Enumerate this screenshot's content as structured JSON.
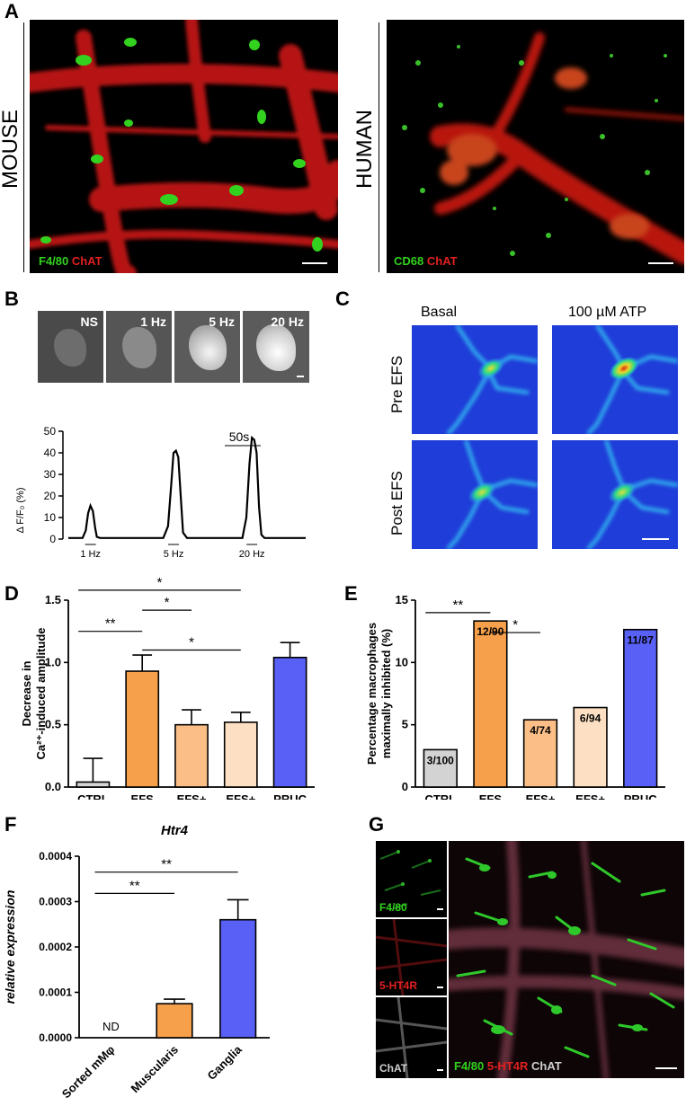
{
  "panels": {
    "A": {
      "letter": "A",
      "mouse": {
        "side_label": "MOUSE",
        "label_green": "F4/80",
        "label_red": "ChAT"
      },
      "human": {
        "side_label": "HUMAN",
        "label_green": "CD68",
        "label_red": "ChAT"
      }
    },
    "B": {
      "letter": "B",
      "frames": [
        "NS",
        "1 Hz",
        "5 Hz",
        "20 Hz"
      ],
      "trace_scalebar": "50s",
      "stim_labels": [
        "1 Hz",
        "5 Hz",
        "20 Hz"
      ]
    },
    "C": {
      "letter": "C",
      "col_labels": [
        "Basal",
        "100 µM ATP"
      ],
      "row_labels": [
        "Pre EFS",
        "Post EFS"
      ]
    },
    "D": {
      "letter": "D"
    },
    "E": {
      "letter": "E"
    },
    "F": {
      "letter": "F"
    },
    "G": {
      "letter": "G",
      "small_labels": [
        "F4/80",
        "5-HT4R",
        "ChAT"
      ],
      "merge_labels": [
        "F4/80",
        "5-HT4R",
        "ChAT"
      ]
    }
  },
  "colors": {
    "orange": "#f7a04b",
    "light_orange": "#fbbe87",
    "peach": "#fde0c3",
    "blue": "#5860f5",
    "grey": "#d3d3d3"
  },
  "chart_data": [
    {
      "id": "B-trace",
      "type": "line",
      "ylabel": "Δ F/F₀ (%)",
      "yticks": [
        0,
        10,
        20,
        30,
        40,
        50
      ],
      "ylim": [
        0,
        50
      ],
      "xlim": [
        0,
        300
      ],
      "series": [
        {
          "x": [
            0,
            18,
            22,
            25,
            28,
            31,
            34,
            36,
            40,
            120,
            126,
            130,
            133,
            136,
            139,
            142,
            145,
            150,
            220,
            225,
            229,
            232,
            235,
            238,
            241,
            244,
            248,
            300
          ],
          "y": [
            0.5,
            0.5,
            4,
            12,
            15.5,
            13,
            5,
            1,
            0.5,
            0.5,
            6,
            25,
            40,
            41,
            38,
            20,
            3,
            0.5,
            0.5,
            10,
            35,
            47,
            46,
            40,
            15,
            2,
            0.5,
            0.5
          ]
        }
      ],
      "stim_x": [
        28,
        133,
        232
      ]
    },
    {
      "id": "D",
      "type": "bar",
      "ylabel_lines": [
        "Decrease in",
        "Ca²⁺-induced  amplitude"
      ],
      "yticks": [
        "0.0",
        "0.5",
        "1.0",
        "1.5"
      ],
      "ylim": [
        0,
        1.5
      ],
      "categories": [
        "CTRL",
        "EFS",
        "EFS+\nTTX",
        "EFS+\nω-con",
        "PRUC"
      ],
      "values": [
        0.04,
        0.93,
        0.5,
        0.52,
        1.04
      ],
      "errors": [
        0.19,
        0.13,
        0.12,
        0.08,
        0.12
      ],
      "colors": [
        "#d3d3d3",
        "#f7a04b",
        "#fbbe87",
        "#fde0c3",
        "#5860f5"
      ],
      "significance": [
        {
          "from": 0,
          "to": 4,
          "label": "**",
          "level": 1.72
        },
        {
          "from": 0,
          "to": 3,
          "label": "*",
          "level": 1.58
        },
        {
          "from": 1,
          "to": 2,
          "label": "*",
          "level": 1.42
        },
        {
          "from": 0,
          "to": 1,
          "label": "**",
          "level": 1.25
        },
        {
          "from": 1,
          "to": 3,
          "label": "*",
          "level": 1.1
        }
      ]
    },
    {
      "id": "E",
      "type": "bar",
      "ylabel_lines": [
        "Percentage macrophages",
        "maximally inhibited (%)"
      ],
      "yticks": [
        "0",
        "5",
        "10",
        "15"
      ],
      "ylim": [
        0,
        15
      ],
      "categories": [
        "CTRL",
        "EFS",
        "EFS+\nTTX",
        "EFS+\nω-con",
        "PRUC"
      ],
      "values": [
        3.0,
        13.33,
        5.4,
        6.38,
        12.64
      ],
      "bar_labels": [
        "3/100",
        "12/90",
        "4/74",
        "6/94",
        "11/87"
      ],
      "colors": [
        "#d3d3d3",
        "#f7a04b",
        "#fbbe87",
        "#fde0c3",
        "#5860f5"
      ],
      "significance": [
        {
          "from": 0,
          "to": 4,
          "label": "*",
          "level": 17.2
        },
        {
          "from": 0,
          "to": 1,
          "label": "**",
          "level": 14.0
        },
        {
          "from": 1,
          "to": 2,
          "label": "*",
          "level": 12.4
        }
      ]
    },
    {
      "id": "F",
      "type": "bar",
      "title": "Htr4",
      "ylabel": "relative expression",
      "yticks": [
        "0.0000",
        "0.0001",
        "0.0002",
        "0.0003",
        "0.0004"
      ],
      "ylim": [
        0,
        0.0004
      ],
      "categories": [
        "Sorted mMφ",
        "Muscularis",
        "Ganglia"
      ],
      "values": [
        0,
        7.5e-05,
        0.00026
      ],
      "errors": [
        0,
        1e-05,
        4.4e-05
      ],
      "bar_labels": [
        "ND",
        "",
        ""
      ],
      "colors": [
        "#ffffff",
        "#f7a04b",
        "#5860f5"
      ],
      "significance": [
        {
          "from": 0,
          "to": 2,
          "label": "**",
          "level": 0.000365
        },
        {
          "from": 0,
          "to": 1,
          "label": "**",
          "level": 0.000318
        }
      ]
    }
  ]
}
